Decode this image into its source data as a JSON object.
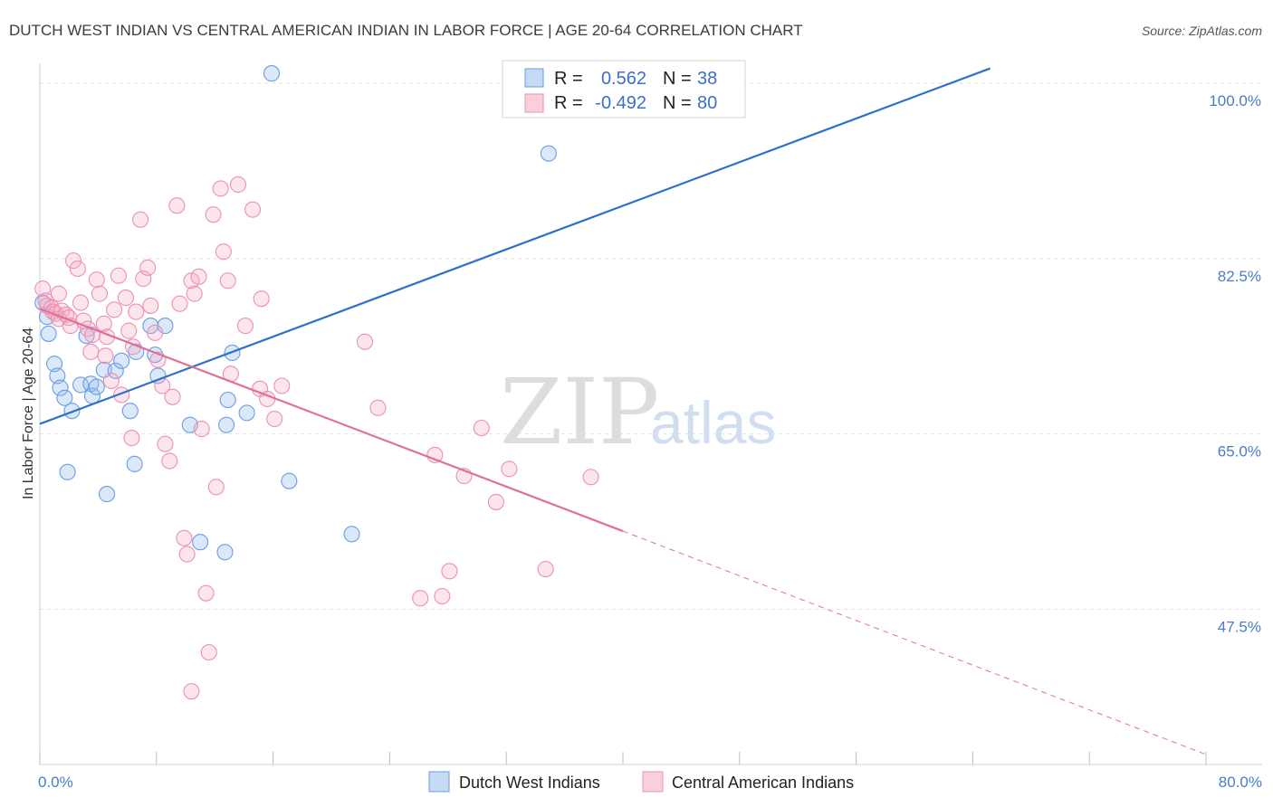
{
  "chart_data": {
    "type": "scatter",
    "title": "DUTCH WEST INDIAN VS CENTRAL AMERICAN INDIAN IN LABOR FORCE | AGE 20-64 CORRELATION CHART",
    "source": "Source: ZipAtlas.com",
    "ylabel": "In Labor Force | Age 20-64",
    "xlabel": "",
    "xlim": [
      0,
      80
    ],
    "ylim": [
      32,
      102
    ],
    "x_tick_labels": [
      "0.0%",
      "80.0%"
    ],
    "y_ticks": [
      47.5,
      65.0,
      82.5,
      100.0
    ],
    "y_tick_labels": [
      "47.5%",
      "65.0%",
      "82.5%",
      "100.0%"
    ],
    "grid": true,
    "watermark": {
      "part1": "ZIP",
      "part2": "atlas"
    },
    "colors": {
      "blue": "#6b9de0",
      "blue_line": "#2e6fcc",
      "pink": "#ec90b0",
      "pink_line": "#e0709a"
    },
    "legend_stats": [
      {
        "r_label": "R =",
        "r_value": "0.562",
        "n_label": "N =",
        "n_value": "38"
      },
      {
        "r_label": "R =",
        "r_value": "-0.492",
        "n_label": "N =",
        "n_value": "80"
      }
    ],
    "series": [
      {
        "name": "Dutch West Indians",
        "color": "#6b9de0",
        "trend": {
          "x": [
            0,
            65.2
          ],
          "y": [
            66.0,
            101.5
          ]
        },
        "points": [
          [
            15.9,
            101.0
          ],
          [
            35.3,
            99.0
          ],
          [
            35.9,
            99.0
          ],
          [
            34.9,
            93.0
          ],
          [
            0.5,
            76.7
          ],
          [
            0.6,
            75.0
          ],
          [
            1.0,
            72.0
          ],
          [
            1.2,
            70.8
          ],
          [
            1.4,
            69.6
          ],
          [
            1.7,
            68.6
          ],
          [
            2.2,
            67.3
          ],
          [
            2.8,
            69.9
          ],
          [
            3.2,
            74.8
          ],
          [
            3.5,
            70.0
          ],
          [
            3.6,
            68.8
          ],
          [
            3.9,
            69.7
          ],
          [
            4.4,
            71.4
          ],
          [
            5.2,
            71.3
          ],
          [
            5.6,
            72.3
          ],
          [
            6.2,
            67.3
          ],
          [
            6.5,
            62.0
          ],
          [
            7.6,
            75.8
          ],
          [
            7.9,
            72.9
          ],
          [
            8.1,
            70.8
          ],
          [
            8.6,
            75.8
          ],
          [
            10.3,
            65.9
          ],
          [
            11.0,
            54.2
          ],
          [
            12.7,
            53.2
          ],
          [
            12.8,
            65.9
          ],
          [
            12.9,
            68.4
          ],
          [
            13.2,
            73.1
          ],
          [
            14.2,
            67.1
          ],
          [
            17.1,
            60.3
          ],
          [
            21.4,
            55.0
          ],
          [
            1.9,
            61.2
          ],
          [
            4.6,
            59.0
          ],
          [
            0.2,
            78.1
          ],
          [
            6.6,
            73.2
          ]
        ]
      },
      {
        "name": "Central American Indians",
        "color": "#ec90b0",
        "trend": {
          "x": [
            0,
            40
          ],
          "y": [
            77.5,
            55.3
          ]
        },
        "trend_dash": {
          "x": [
            40,
            80
          ],
          "y": [
            55.3,
            33.0
          ]
        },
        "points": [
          [
            0.2,
            79.5
          ],
          [
            0.4,
            78.3
          ],
          [
            0.5,
            77.8
          ],
          [
            0.8,
            77.6
          ],
          [
            0.9,
            77.2
          ],
          [
            1.1,
            77.0
          ],
          [
            1.3,
            76.5
          ],
          [
            1.5,
            77.3
          ],
          [
            1.8,
            76.9
          ],
          [
            2.0,
            76.6
          ],
          [
            2.3,
            82.3
          ],
          [
            2.6,
            81.5
          ],
          [
            2.8,
            78.1
          ],
          [
            3.0,
            76.3
          ],
          [
            3.3,
            75.5
          ],
          [
            3.5,
            73.2
          ],
          [
            3.6,
            74.9
          ],
          [
            3.9,
            80.4
          ],
          [
            4.1,
            79.0
          ],
          [
            4.4,
            76.0
          ],
          [
            4.6,
            74.7
          ],
          [
            4.9,
            70.3
          ],
          [
            5.1,
            77.4
          ],
          [
            5.4,
            80.8
          ],
          [
            5.6,
            68.9
          ],
          [
            5.9,
            78.6
          ],
          [
            6.1,
            75.3
          ],
          [
            6.4,
            73.7
          ],
          [
            6.6,
            77.2
          ],
          [
            6.9,
            86.4
          ],
          [
            7.1,
            80.5
          ],
          [
            7.4,
            81.6
          ],
          [
            7.6,
            77.8
          ],
          [
            7.9,
            75.1
          ],
          [
            8.1,
            72.4
          ],
          [
            8.4,
            69.8
          ],
          [
            8.6,
            64.0
          ],
          [
            8.9,
            62.3
          ],
          [
            9.1,
            68.7
          ],
          [
            9.4,
            87.8
          ],
          [
            9.6,
            78.0
          ],
          [
            9.9,
            54.6
          ],
          [
            10.1,
            53.0
          ],
          [
            10.4,
            80.3
          ],
          [
            10.6,
            79.0
          ],
          [
            10.9,
            80.7
          ],
          [
            11.1,
            65.5
          ],
          [
            11.4,
            49.1
          ],
          [
            11.6,
            43.2
          ],
          [
            11.9,
            86.9
          ],
          [
            12.1,
            59.7
          ],
          [
            12.4,
            89.5
          ],
          [
            12.6,
            83.2
          ],
          [
            12.9,
            80.3
          ],
          [
            13.1,
            71.0
          ],
          [
            13.6,
            89.9
          ],
          [
            14.1,
            75.8
          ],
          [
            14.6,
            87.4
          ],
          [
            15.1,
            69.5
          ],
          [
            15.6,
            68.5
          ],
          [
            16.1,
            66.5
          ],
          [
            16.6,
            69.8
          ],
          [
            22.3,
            74.2
          ],
          [
            23.2,
            67.6
          ],
          [
            26.1,
            48.6
          ],
          [
            27.1,
            62.9
          ],
          [
            27.6,
            48.8
          ],
          [
            28.1,
            51.3
          ],
          [
            29.1,
            60.8
          ],
          [
            30.3,
            65.6
          ],
          [
            31.3,
            58.2
          ],
          [
            32.2,
            61.5
          ],
          [
            34.7,
            51.5
          ],
          [
            37.8,
            60.7
          ],
          [
            10.4,
            39.3
          ],
          [
            4.5,
            72.8
          ],
          [
            1.3,
            79.0
          ],
          [
            2.1,
            75.8
          ],
          [
            6.3,
            64.6
          ],
          [
            15.2,
            78.5
          ]
        ]
      }
    ]
  }
}
